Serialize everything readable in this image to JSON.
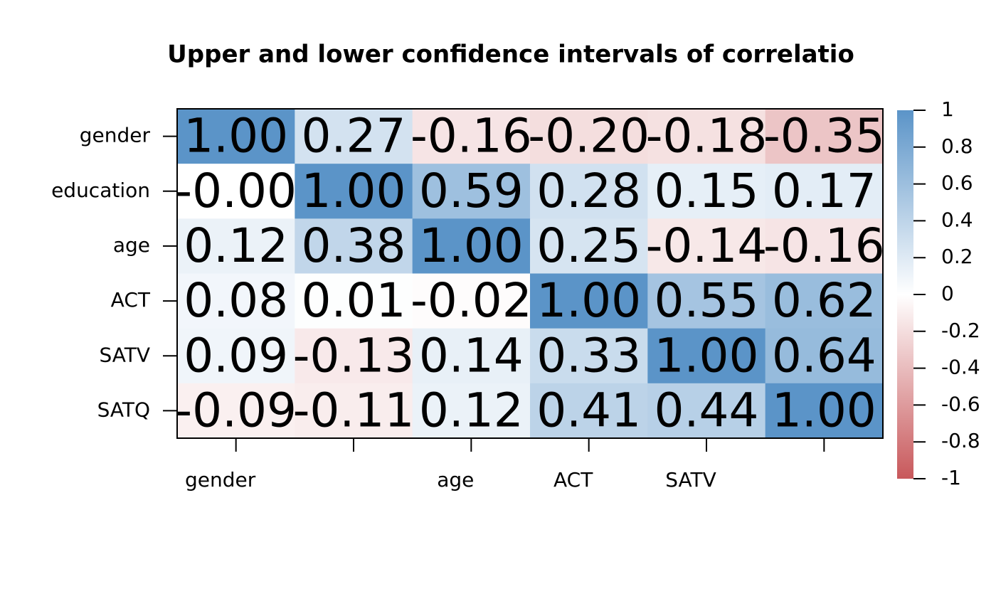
{
  "chart_data": {
    "type": "heatmap",
    "title": "Upper and lower confidence intervals of correlatio",
    "x_categories": [
      "gender",
      null,
      "age",
      "ACT",
      "SATV",
      null
    ],
    "y_categories": [
      "gender",
      "education",
      "age",
      "ACT",
      "SATV",
      "SATQ"
    ],
    "values": [
      [
        1,
        0.27,
        -0.16,
        -0.2,
        -0.18,
        -0.35
      ],
      [
        0,
        1,
        0.59,
        0.28,
        0.15,
        0.17
      ],
      [
        0.12,
        0.38,
        1,
        0.25,
        -0.14,
        -0.16
      ],
      [
        0.08,
        0.01,
        -0.02,
        1,
        0.55,
        0.62
      ],
      [
        0.09,
        -0.13,
        0.14,
        0.33,
        1,
        0.64
      ],
      [
        -0.09,
        -0.11,
        0.12,
        0.41,
        0.44,
        1
      ]
    ],
    "value_labels": [
      [
        "1.00",
        "0.27",
        "-0.16",
        "-0.20",
        "-0.18",
        "-0.35"
      ],
      [
        "-0.00",
        "1.00",
        "0.59",
        "0.28",
        "0.15",
        "0.17"
      ],
      [
        "0.12",
        "0.38",
        "1.00",
        "0.25",
        "-0.14",
        "-0.16"
      ],
      [
        "0.08",
        "0.01",
        "-0.02",
        "1.00",
        "0.55",
        "0.62"
      ],
      [
        "0.09",
        "-0.13",
        "0.14",
        "0.33",
        "1.00",
        "0.64"
      ],
      [
        "-0.09",
        "-0.11",
        "0.12",
        "0.41",
        "0.44",
        "1.00"
      ]
    ],
    "colors": [
      "#c8585b",
      "#ffffff",
      "#5b94c8"
    ],
    "colorbar_lim": [
      -1,
      1
    ],
    "colorbar_ticks": [
      1,
      0.8,
      0.6,
      0.4,
      0.2,
      0,
      -0.2,
      -0.4,
      -0.6,
      -0.8,
      -1
    ]
  }
}
